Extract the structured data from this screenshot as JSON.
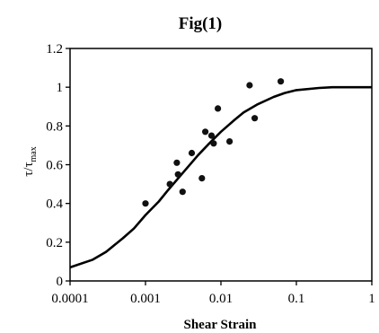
{
  "chart_data": {
    "type": "scatter",
    "title": "Fig(1)",
    "xlabel": "Shear Strain",
    "ylabel": {
      "main": "τ/τ",
      "sub": "max"
    },
    "x_scale": "log",
    "xlim": [
      0.0001,
      1
    ],
    "ylim": [
      0,
      1.2
    ],
    "x_ticks": [
      0.0001,
      0.001,
      0.01,
      0.1,
      1
    ],
    "x_tick_labels": [
      "0.0001",
      "0.001",
      "0.01",
      "0.1",
      "1"
    ],
    "y_ticks": [
      0,
      0.2,
      0.4,
      0.6,
      0.8,
      1,
      1.2
    ],
    "y_tick_labels": [
      "0",
      "0.2",
      "0.4",
      "0.6",
      "0.8",
      "1",
      "1.2"
    ],
    "grid": false,
    "series": [
      {
        "kind": "points",
        "points": [
          {
            "x": 0.001,
            "y": 0.4
          },
          {
            "x": 0.0021,
            "y": 0.5
          },
          {
            "x": 0.0026,
            "y": 0.61
          },
          {
            "x": 0.0027,
            "y": 0.55
          },
          {
            "x": 0.0031,
            "y": 0.46
          },
          {
            "x": 0.0041,
            "y": 0.66
          },
          {
            "x": 0.0056,
            "y": 0.53
          },
          {
            "x": 0.0062,
            "y": 0.77
          },
          {
            "x": 0.0075,
            "y": 0.75
          },
          {
            "x": 0.008,
            "y": 0.71
          },
          {
            "x": 0.0091,
            "y": 0.89
          },
          {
            "x": 0.013,
            "y": 0.72
          },
          {
            "x": 0.024,
            "y": 1.01
          },
          {
            "x": 0.028,
            "y": 0.84
          },
          {
            "x": 0.062,
            "y": 1.03
          }
        ]
      },
      {
        "kind": "curve",
        "points": [
          {
            "x": 0.0001,
            "y": 0.07
          },
          {
            "x": 0.0002,
            "y": 0.11
          },
          {
            "x": 0.0003,
            "y": 0.15
          },
          {
            "x": 0.0005,
            "y": 0.22
          },
          {
            "x": 0.0007,
            "y": 0.27
          },
          {
            "x": 0.001,
            "y": 0.34
          },
          {
            "x": 0.0015,
            "y": 0.41
          },
          {
            "x": 0.002,
            "y": 0.47
          },
          {
            "x": 0.003,
            "y": 0.55
          },
          {
            "x": 0.005,
            "y": 0.65
          },
          {
            "x": 0.007,
            "y": 0.71
          },
          {
            "x": 0.01,
            "y": 0.77
          },
          {
            "x": 0.015,
            "y": 0.83
          },
          {
            "x": 0.02,
            "y": 0.87
          },
          {
            "x": 0.03,
            "y": 0.91
          },
          {
            "x": 0.05,
            "y": 0.95
          },
          {
            "x": 0.07,
            "y": 0.97
          },
          {
            "x": 0.1,
            "y": 0.985
          },
          {
            "x": 0.2,
            "y": 0.996
          },
          {
            "x": 0.3,
            "y": 1.0
          },
          {
            "x": 0.5,
            "y": 1.0
          },
          {
            "x": 1,
            "y": 1.0
          }
        ]
      }
    ]
  }
}
